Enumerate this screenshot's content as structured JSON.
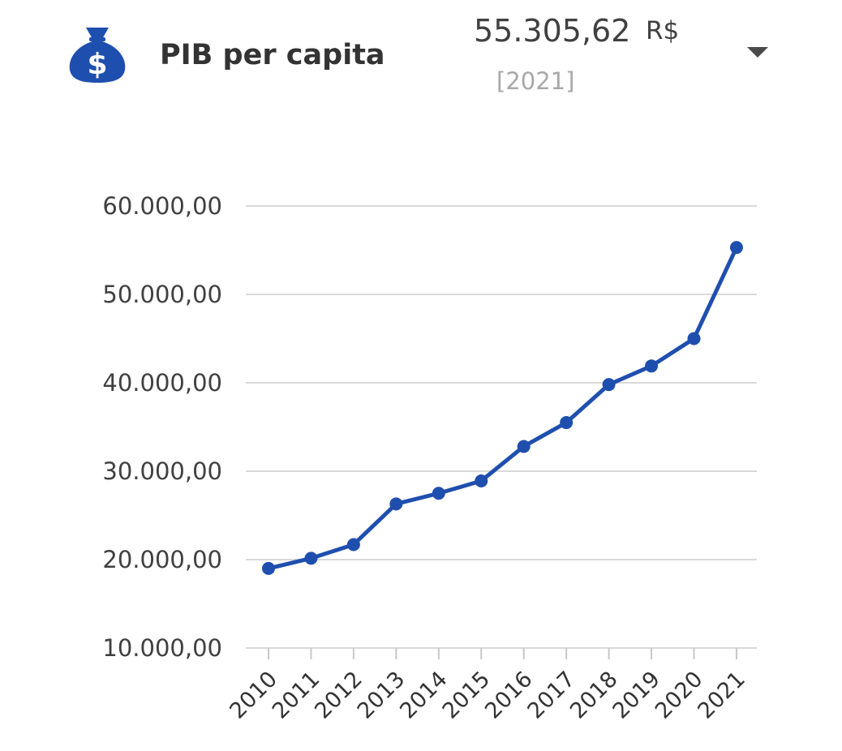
{
  "header": {
    "title": "PIB per capita",
    "value": "55.305,62",
    "unit": "R$",
    "year": "[2021]",
    "icon": "money-bag-icon",
    "dropdown_icon": "caret-down-icon"
  },
  "colors": {
    "accent": "#1f4fae",
    "line": "#1f4fae",
    "grid": "#d9d9d9",
    "text": "#333333",
    "muted": "#a8a8a8"
  },
  "chart_data": {
    "type": "line",
    "categories": [
      "2010",
      "2011",
      "2012",
      "2013",
      "2014",
      "2015",
      "2016",
      "2017",
      "2018",
      "2019",
      "2020",
      "2021"
    ],
    "series": [
      {
        "values": [
          19000,
          20150,
          21700,
          26300,
          27500,
          28900,
          32800,
          35500,
          39800,
          41900,
          45000,
          55305.62
        ]
      }
    ],
    "yticks": [
      "10.000,00",
      "20.000,00",
      "30.000,00",
      "40.000,00",
      "50.000,00",
      "60.000,00"
    ],
    "ylim": [
      10000,
      60000
    ],
    "grid": true,
    "title": "",
    "xlabel": "",
    "ylabel": ""
  }
}
